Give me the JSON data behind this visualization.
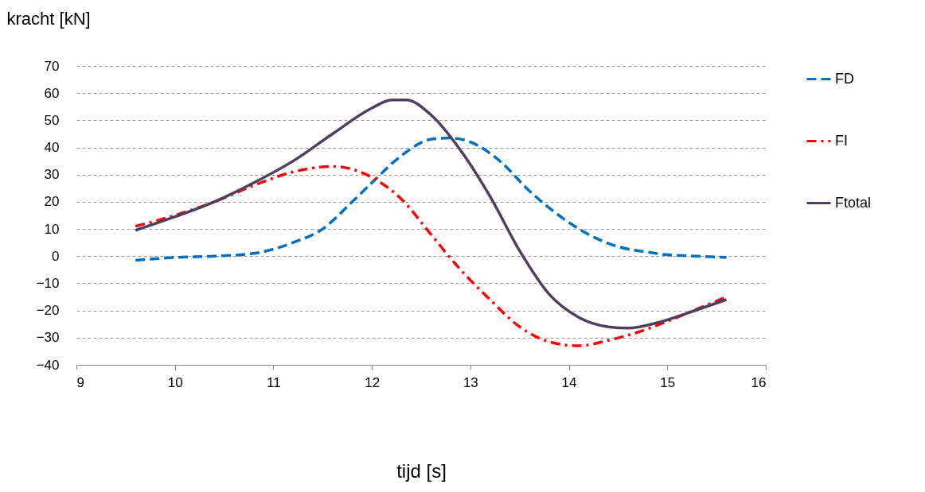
{
  "chart_data": {
    "type": "line",
    "xlabel": "tijd [s]",
    "ylabel": "kracht [kN]",
    "xlim": [
      9,
      16
    ],
    "xticks": [
      9,
      10,
      11,
      12,
      13,
      14,
      15,
      16
    ],
    "ylim": [
      -40,
      70
    ],
    "yticks": [
      -40,
      -30,
      -20,
      -10,
      0,
      10,
      20,
      30,
      40,
      50,
      60,
      70
    ],
    "grid": "y",
    "legend": "top right",
    "marker": "none",
    "series": [
      {
        "name": "FD",
        "color": "#0070c0",
        "line_style": "dashed",
        "x": [
          9.6,
          10,
          10.4,
          10.8,
          11.2,
          11.5,
          11.8,
          12,
          12.3,
          12.6,
          12.8,
          13,
          13.3,
          13.6,
          13.9,
          14.2,
          14.5,
          14.8,
          15,
          15.3,
          15.6
        ],
        "values": [
          -1.5,
          -0.5,
          0,
          1,
          5,
          10,
          20,
          27,
          37,
          43,
          43.5,
          42,
          35,
          24,
          15,
          8,
          3.5,
          1.5,
          0.5,
          0,
          -0.5
        ]
      },
      {
        "name": "FI",
        "color": "#ff0000",
        "line_style": "dashdot",
        "x": [
          9.6,
          10,
          10.4,
          10.8,
          11.2,
          11.6,
          11.8,
          12,
          12.3,
          12.6,
          12.9,
          13.2,
          13.5,
          13.8,
          14.1,
          14.4,
          14.7,
          15,
          15.3,
          15.6
        ],
        "values": [
          11,
          15,
          20,
          26,
          31,
          33,
          32,
          29,
          21,
          8,
          -5,
          -16,
          -26,
          -31.5,
          -33,
          -31,
          -28,
          -24,
          -19.5,
          -15
        ]
      },
      {
        "name": "Ftotal",
        "color": "#4e3f5e",
        "line_style": "solid",
        "x": [
          9.6,
          10,
          10.4,
          10.8,
          11.2,
          11.6,
          12,
          12.2,
          12.35,
          12.6,
          12.9,
          13.2,
          13.5,
          13.8,
          14.1,
          14.4,
          14.6,
          14.9,
          15.2,
          15.6
        ],
        "values": [
          9.5,
          14.5,
          20,
          27,
          35,
          45,
          54.5,
          57.5,
          57.5,
          52,
          39,
          22,
          2,
          -14,
          -22.5,
          -26,
          -26.5,
          -24.5,
          -21,
          -16
        ]
      }
    ]
  }
}
